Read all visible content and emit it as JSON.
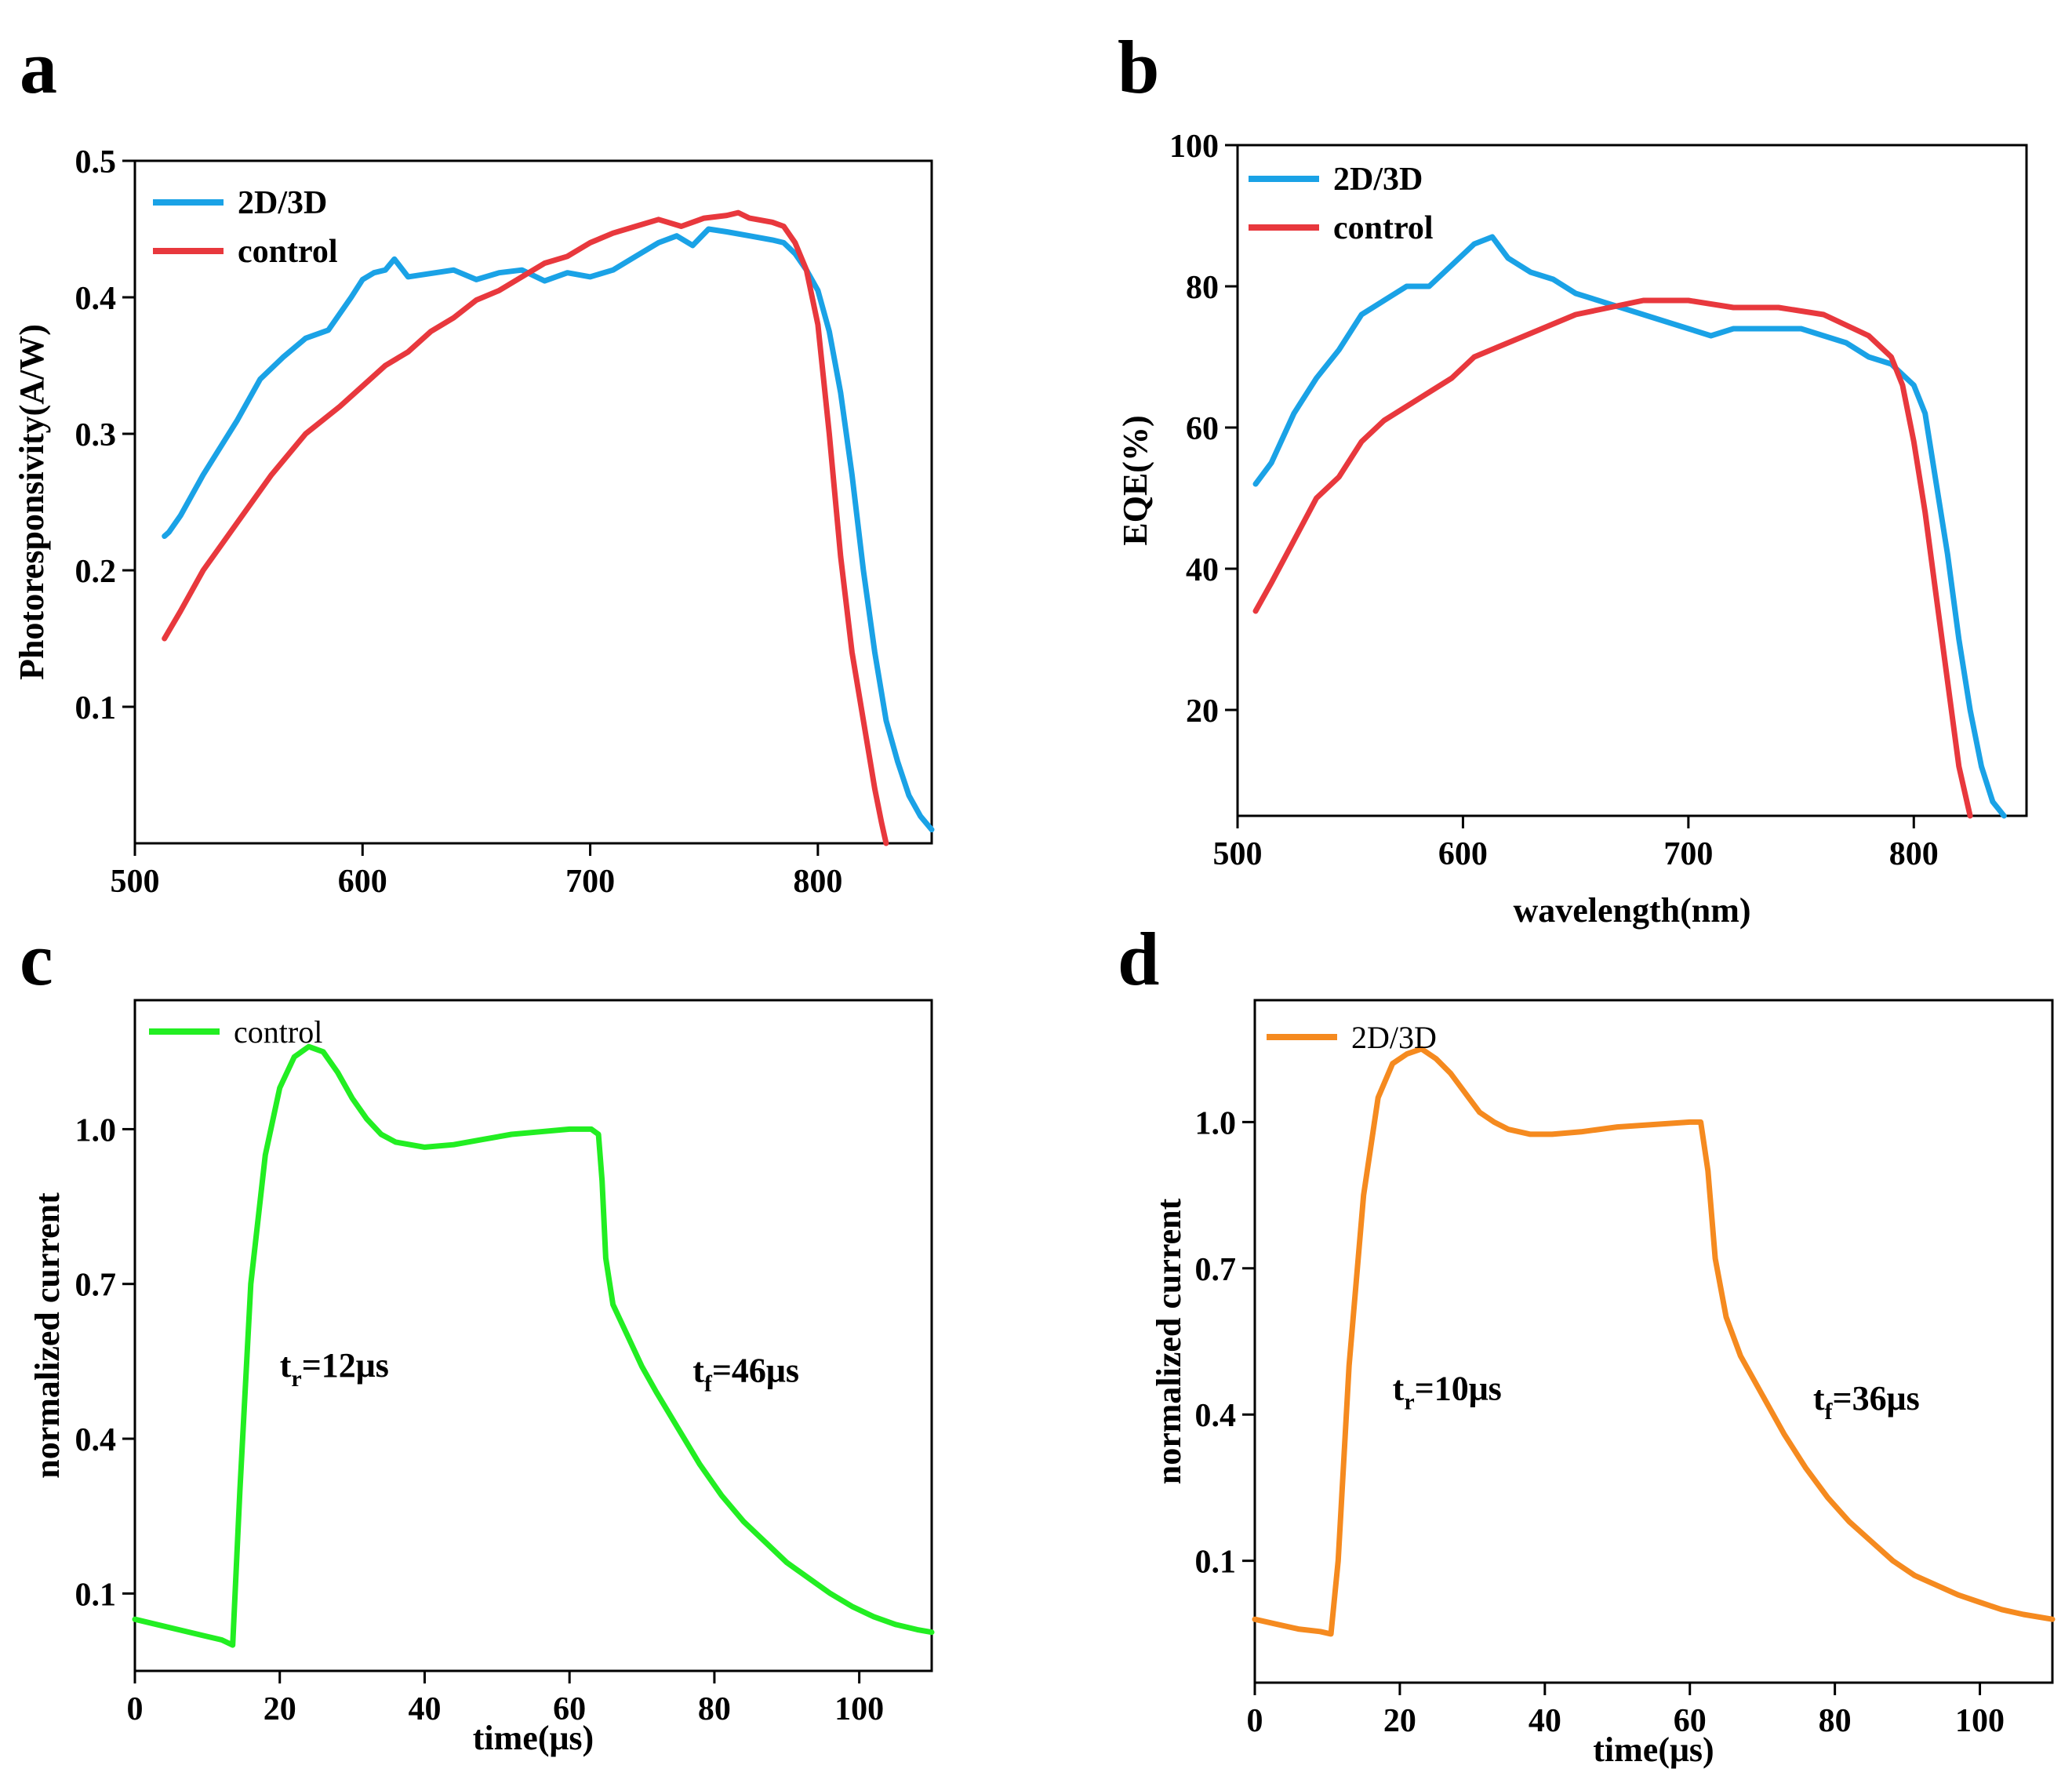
{
  "figure": {
    "panels": [
      "a",
      "b",
      "c",
      "d"
    ]
  },
  "chart_data": [
    {
      "id": "a",
      "type": "line",
      "panel_label": "a",
      "xlabel": "",
      "ylabel": "Photoresponsivity(A/W)",
      "xlim": [
        500,
        850
      ],
      "ylim": [
        0,
        0.5
      ],
      "xticks": [
        500,
        600,
        700,
        800
      ],
      "yticks": [
        0.1,
        0.2,
        0.3,
        0.4,
        0.5
      ],
      "legend": {
        "position": "top-left",
        "style": "bold"
      },
      "series": [
        {
          "name": "2D/3D",
          "color": "#1aa2e6",
          "x": [
            513,
            515,
            520,
            530,
            545,
            555,
            565,
            575,
            585,
            595,
            600,
            605,
            610,
            614,
            620,
            640,
            650,
            660,
            670,
            680,
            690,
            700,
            710,
            720,
            730,
            738,
            745,
            752,
            760,
            770,
            780,
            785,
            790,
            795,
            800,
            805,
            810,
            815,
            820,
            825,
            830,
            835,
            840,
            845,
            850
          ],
          "y": [
            0.225,
            0.228,
            0.24,
            0.27,
            0.31,
            0.34,
            0.356,
            0.37,
            0.376,
            0.4,
            0.413,
            0.418,
            0.42,
            0.428,
            0.415,
            0.42,
            0.413,
            0.418,
            0.42,
            0.412,
            0.418,
            0.415,
            0.42,
            0.43,
            0.44,
            0.445,
            0.438,
            0.45,
            0.448,
            0.445,
            0.442,
            0.44,
            0.432,
            0.42,
            0.405,
            0.375,
            0.33,
            0.27,
            0.2,
            0.14,
            0.09,
            0.06,
            0.035,
            0.02,
            0.01
          ]
        },
        {
          "name": "control",
          "color": "#e8383d",
          "x": [
            513,
            520,
            530,
            545,
            560,
            575,
            590,
            600,
            610,
            620,
            630,
            640,
            650,
            660,
            670,
            680,
            690,
            700,
            710,
            720,
            730,
            740,
            750,
            760,
            765,
            770,
            780,
            785,
            790,
            795,
            800,
            805,
            810,
            815,
            820,
            825,
            828,
            830
          ],
          "y": [
            0.15,
            0.17,
            0.2,
            0.235,
            0.27,
            0.3,
            0.32,
            0.335,
            0.35,
            0.36,
            0.375,
            0.385,
            0.398,
            0.405,
            0.415,
            0.425,
            0.43,
            0.44,
            0.447,
            0.452,
            0.457,
            0.452,
            0.458,
            0.46,
            0.462,
            0.458,
            0.455,
            0.452,
            0.44,
            0.42,
            0.38,
            0.3,
            0.21,
            0.14,
            0.09,
            0.04,
            0.015,
            0.0
          ]
        }
      ]
    },
    {
      "id": "b",
      "type": "line",
      "panel_label": "b",
      "xlabel": "wavelength(nm)",
      "ylabel": "EQE(%)",
      "xlim": [
        500,
        850
      ],
      "ylim": [
        5,
        100
      ],
      "xticks": [
        500,
        600,
        700,
        800
      ],
      "yticks": [
        20,
        40,
        60,
        80,
        100
      ],
      "legend": {
        "position": "top-left",
        "style": "bold"
      },
      "series": [
        {
          "name": "2D/3D",
          "color": "#1aa2e6",
          "x": [
            508,
            515,
            525,
            535,
            545,
            555,
            565,
            575,
            585,
            595,
            605,
            613,
            620,
            630,
            640,
            650,
            660,
            670,
            680,
            690,
            700,
            710,
            720,
            730,
            740,
            750,
            760,
            770,
            780,
            790,
            800,
            805,
            810,
            815,
            820,
            825,
            830,
            835,
            840
          ],
          "y": [
            52,
            55,
            62,
            67,
            71,
            76,
            78,
            80,
            80,
            83,
            86,
            87,
            84,
            82,
            81,
            79,
            78,
            77,
            76,
            75,
            74,
            73,
            74,
            74,
            74,
            74,
            73,
            72,
            70,
            69,
            66,
            62,
            52,
            42,
            30,
            20,
            12,
            7,
            5
          ]
        },
        {
          "name": "control",
          "color": "#e8383d",
          "x": [
            508,
            515,
            525,
            535,
            545,
            555,
            565,
            575,
            585,
            595,
            605,
            620,
            635,
            650,
            665,
            680,
            700,
            720,
            740,
            760,
            780,
            790,
            795,
            800,
            805,
            810,
            815,
            820,
            825
          ],
          "y": [
            34,
            38,
            44,
            50,
            53,
            58,
            61,
            63,
            65,
            67,
            70,
            72,
            74,
            76,
            77,
            78,
            78,
            77,
            77,
            76,
            73,
            70,
            66,
            58,
            48,
            36,
            24,
            12,
            5
          ]
        }
      ]
    },
    {
      "id": "c",
      "type": "line",
      "panel_label": "c",
      "xlabel": "time(μs)",
      "ylabel": "normalized current",
      "xlim": [
        0,
        110
      ],
      "ylim": [
        -0.05,
        1.25
      ],
      "xticks": [
        0,
        20,
        40,
        60,
        80,
        100
      ],
      "yticks": [
        0.1,
        0.4,
        0.7,
        1.0
      ],
      "legend": {
        "position": "top-left",
        "style": "plain"
      },
      "annotations": [
        {
          "main": "t",
          "sub": "r",
          "rest": "=12μs",
          "x": 20,
          "y": 0.52
        },
        {
          "main": "t",
          "sub": "f",
          "rest": "=46μs",
          "x": 77,
          "y": 0.51
        }
      ],
      "series": [
        {
          "name": "control",
          "color": "#22ee22",
          "x": [
            0,
            3,
            6,
            9,
            12,
            13.5,
            14.5,
            16,
            18,
            20,
            22,
            24,
            26,
            28,
            30,
            32,
            34,
            36,
            38,
            40,
            44,
            48,
            52,
            56,
            60,
            63,
            64,
            64.5,
            65,
            66,
            68,
            70,
            72,
            75,
            78,
            81,
            84,
            87,
            90,
            93,
            96,
            99,
            102,
            105,
            108,
            110
          ],
          "y": [
            0.05,
            0.04,
            0.03,
            0.02,
            0.01,
            0.0,
            0.3,
            0.7,
            0.95,
            1.08,
            1.14,
            1.16,
            1.15,
            1.11,
            1.06,
            1.02,
            0.99,
            0.975,
            0.97,
            0.965,
            0.97,
            0.98,
            0.99,
            0.995,
            1.0,
            1.0,
            0.99,
            0.9,
            0.75,
            0.66,
            0.6,
            0.54,
            0.49,
            0.42,
            0.35,
            0.29,
            0.24,
            0.2,
            0.16,
            0.13,
            0.1,
            0.075,
            0.055,
            0.04,
            0.03,
            0.025
          ]
        }
      ]
    },
    {
      "id": "d",
      "type": "line",
      "panel_label": "d",
      "xlabel": "time(μs)",
      "ylabel": "normalized current",
      "xlim": [
        0,
        110
      ],
      "ylim": [
        -0.15,
        1.25
      ],
      "xticks": [
        0,
        20,
        40,
        60,
        80,
        100
      ],
      "yticks": [
        0.1,
        0.4,
        0.7,
        1.0
      ],
      "legend": {
        "position": "top-left",
        "style": "plain"
      },
      "annotations": [
        {
          "main": "t",
          "sub": "r",
          "rest": "=10μs",
          "x": 19,
          "y": 0.43
        },
        {
          "main": "t",
          "sub": "f",
          "rest": "=36μs",
          "x": 77,
          "y": 0.41
        }
      ],
      "series": [
        {
          "name": "2D/3D",
          "color": "#f58a1f",
          "x": [
            0,
            3,
            6,
            9,
            10.5,
            11.5,
            13,
            15,
            17,
            19,
            21,
            23,
            25,
            27,
            29,
            31,
            33,
            35,
            38,
            41,
            45,
            50,
            55,
            60,
            61.5,
            62.5,
            63.5,
            65,
            67,
            70,
            73,
            76,
            79,
            82,
            85,
            88,
            91,
            94,
            97,
            100,
            103,
            106,
            110
          ],
          "y": [
            -0.02,
            -0.03,
            -0.04,
            -0.045,
            -0.05,
            0.1,
            0.5,
            0.85,
            1.05,
            1.12,
            1.14,
            1.15,
            1.13,
            1.1,
            1.06,
            1.02,
            1.0,
            0.985,
            0.975,
            0.975,
            0.98,
            0.99,
            0.995,
            1.0,
            1.0,
            0.9,
            0.72,
            0.6,
            0.52,
            0.44,
            0.36,
            0.29,
            0.23,
            0.18,
            0.14,
            0.1,
            0.07,
            0.05,
            0.03,
            0.015,
            0.0,
            -0.01,
            -0.02
          ]
        }
      ]
    }
  ]
}
